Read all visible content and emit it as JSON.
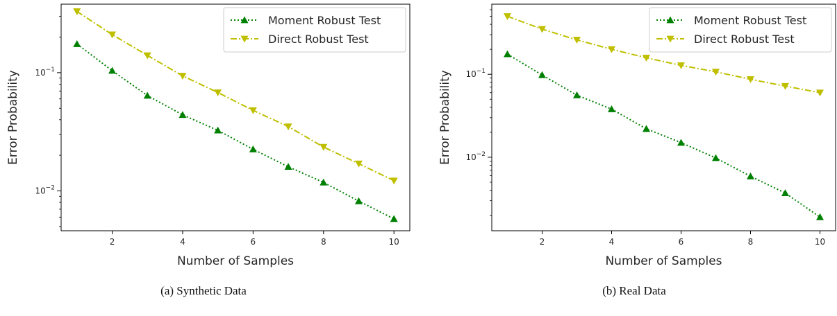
{
  "captions": [
    "(a) Synthetic Data",
    "(b) Real Data"
  ],
  "colors": {
    "moment": "#008000",
    "direct": "#bfbf00",
    "axis": "#000000"
  },
  "chart_data": [
    {
      "type": "line",
      "title": "",
      "xlabel": "Number of Samples",
      "ylabel": "Error Probability",
      "xlim": [
        0.55,
        10.45
      ],
      "ylim": [
        0.0046,
        0.38
      ],
      "yscale": "log",
      "xticks": [
        2,
        4,
        6,
        8,
        10
      ],
      "yticks": [
        0.01,
        0.1
      ],
      "ytick_labels": [
        [
          "10",
          "−2"
        ],
        [
          "10",
          "−1"
        ]
      ],
      "grid": false,
      "legend": "top-right",
      "x": [
        1,
        2,
        3,
        4,
        5,
        6,
        7,
        8,
        9,
        10
      ],
      "series": [
        {
          "name": "Moment Robust Test",
          "marker": "triangle-up",
          "linestyle": "dotted",
          "values": [
            0.175,
            0.104,
            0.064,
            0.044,
            0.0325,
            0.0225,
            0.016,
            0.0118,
            0.0082,
            0.0058
          ]
        },
        {
          "name": "Direct Robust Test",
          "marker": "triangle-down",
          "linestyle": "dashdot",
          "values": [
            0.33,
            0.21,
            0.14,
            0.094,
            0.068,
            0.048,
            0.035,
            0.0235,
            0.017,
            0.0122
          ]
        }
      ]
    },
    {
      "type": "line",
      "title": "",
      "xlabel": "Number of Samples",
      "ylabel": "Error Probability",
      "xlim": [
        0.55,
        10.45
      ],
      "ylim": [
        0.0013,
        0.7
      ],
      "yscale": "log",
      "xticks": [
        2,
        4,
        6,
        8,
        10
      ],
      "yticks": [
        0.01,
        0.1
      ],
      "ytick_labels": [
        [
          "10",
          "−2"
        ],
        [
          "10",
          "−1"
        ]
      ],
      "grid": false,
      "legend": "top-right",
      "x": [
        1,
        2,
        3,
        4,
        5,
        6,
        7,
        8,
        9,
        10
      ],
      "series": [
        {
          "name": "Moment Robust Test",
          "marker": "triangle-up",
          "linestyle": "dotted",
          "values": [
            0.175,
            0.098,
            0.056,
            0.038,
            0.022,
            0.015,
            0.0098,
            0.0059,
            0.0037,
            0.0019
          ]
        },
        {
          "name": "Direct Robust Test",
          "marker": "triangle-down",
          "linestyle": "dashdot",
          "values": [
            0.5,
            0.35,
            0.26,
            0.2,
            0.158,
            0.128,
            0.107,
            0.087,
            0.072,
            0.06
          ]
        }
      ]
    }
  ]
}
